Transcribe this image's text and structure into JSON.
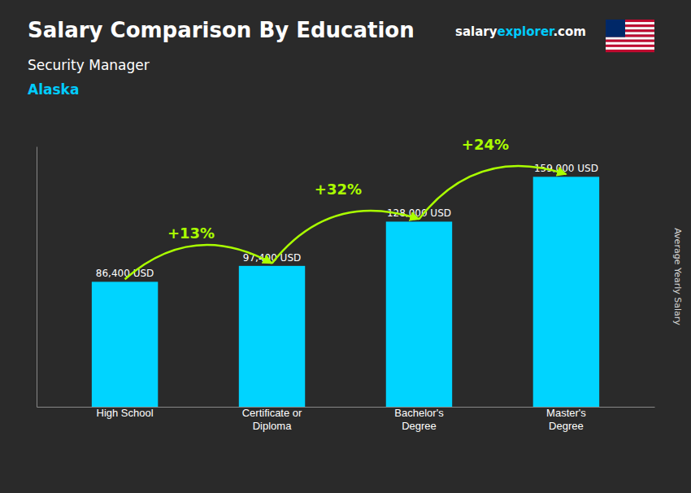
{
  "chart_data": {
    "type": "bar",
    "title": "Salary Comparison By Education",
    "subtitle": "Security Manager",
    "location": {
      "text": "Alaska",
      "color": "#00ccff"
    },
    "y_label": "Average Yearly Salary",
    "categories": [
      "High School",
      "Certificate or\nDiploma",
      "Bachelor's\nDegree",
      "Master's\nDegree"
    ],
    "values": [
      86400,
      97400,
      128000,
      159000
    ],
    "value_labels": [
      "86,400 USD",
      "97,400 USD",
      "128,000 USD",
      "159,000 USD"
    ],
    "data_labels": true,
    "color": "#00d4ff",
    "ylim": [
      0,
      180000
    ],
    "yticks": [],
    "tick_labels": "x",
    "grid": false,
    "annotations": [
      {
        "text": "+13%",
        "color": "#aaff00"
      },
      {
        "text": "+32%",
        "color": "#aaff00"
      },
      {
        "text": "+24%",
        "color": "#aaff00"
      }
    ],
    "website": [
      {
        "text": "salary",
        "color": "#ffffff"
      },
      {
        "text": "explorer",
        "color": "#00ccff"
      },
      {
        "text": ".com",
        "color": "#ffffff"
      }
    ]
  }
}
